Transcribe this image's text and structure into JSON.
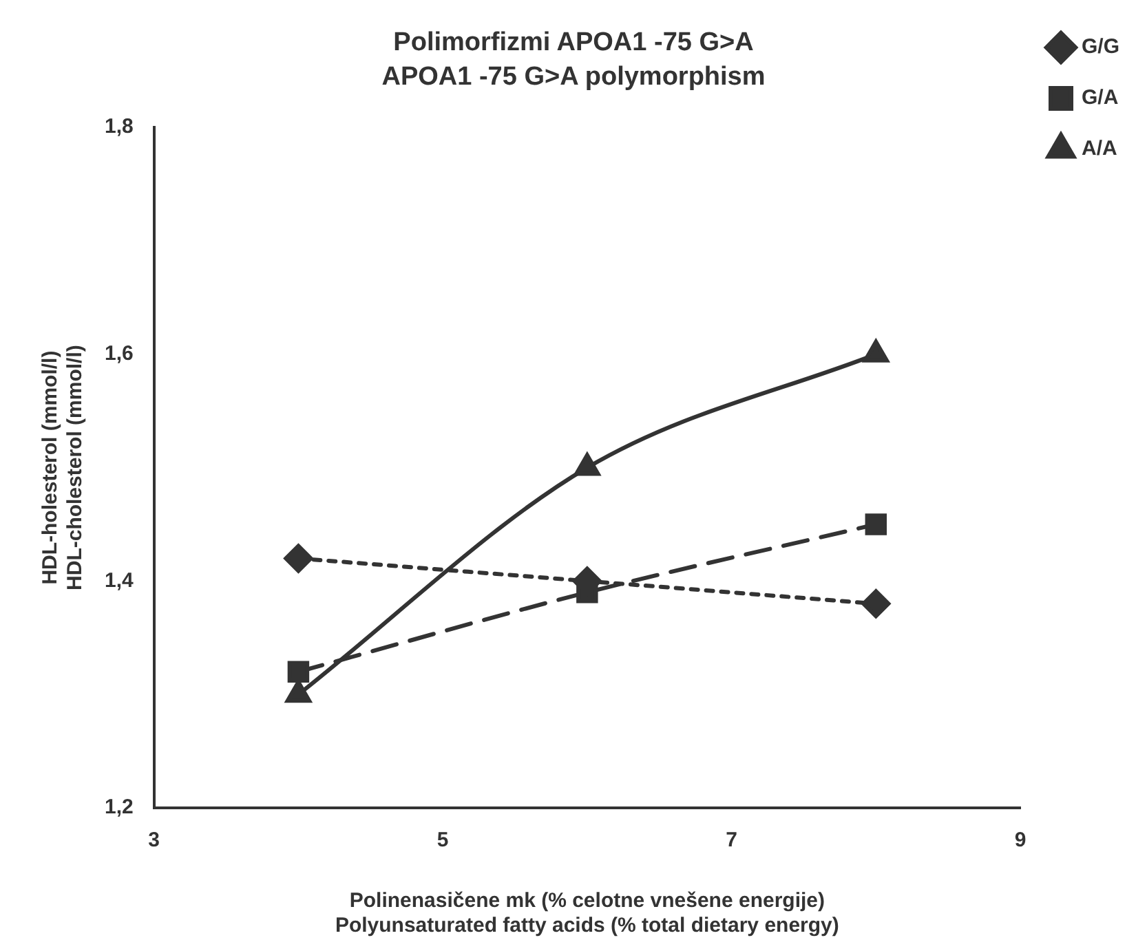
{
  "chart_data": {
    "type": "line",
    "title": "Polimorfizmi APOA1 -75 G>A",
    "subtitle": "APOA1 -75 G>A polymorphism",
    "xlabel": "Polinenasičene mk (% celotne vnešene energije)\nPolyunsaturated fatty acids (% total dietary energy)",
    "ylabel": "HDL-holesterol (mmol/l)\nHDL-cholesterol (mmol/l)",
    "x": [
      4,
      6,
      8
    ],
    "series": [
      {
        "name": "G/G",
        "color": "#333333",
        "values": [
          1.42,
          1.4,
          1.38
        ],
        "marker": "diamond",
        "line_style": "dotted"
      },
      {
        "name": "G/A",
        "color": "#333333",
        "values": [
          1.32,
          1.39,
          1.45
        ],
        "marker": "square",
        "line_style": "dashed"
      },
      {
        "name": "A/A",
        "color": "#333333",
        "values": [
          1.3,
          1.5,
          1.6
        ],
        "marker": "triangle",
        "line_style": "solid"
      }
    ],
    "xlim": [
      3,
      9
    ],
    "xticks": [
      3,
      5,
      7,
      9
    ],
    "ylim": [
      1.2,
      1.8
    ],
    "yticks": [
      {
        "value": 1.2,
        "label": "1,2"
      },
      {
        "value": 1.4,
        "label": "1,4"
      },
      {
        "value": 1.6,
        "label": "1,6"
      },
      {
        "value": 1.8,
        "label": "1,8"
      }
    ],
    "grid": false,
    "legend": "top right"
  }
}
